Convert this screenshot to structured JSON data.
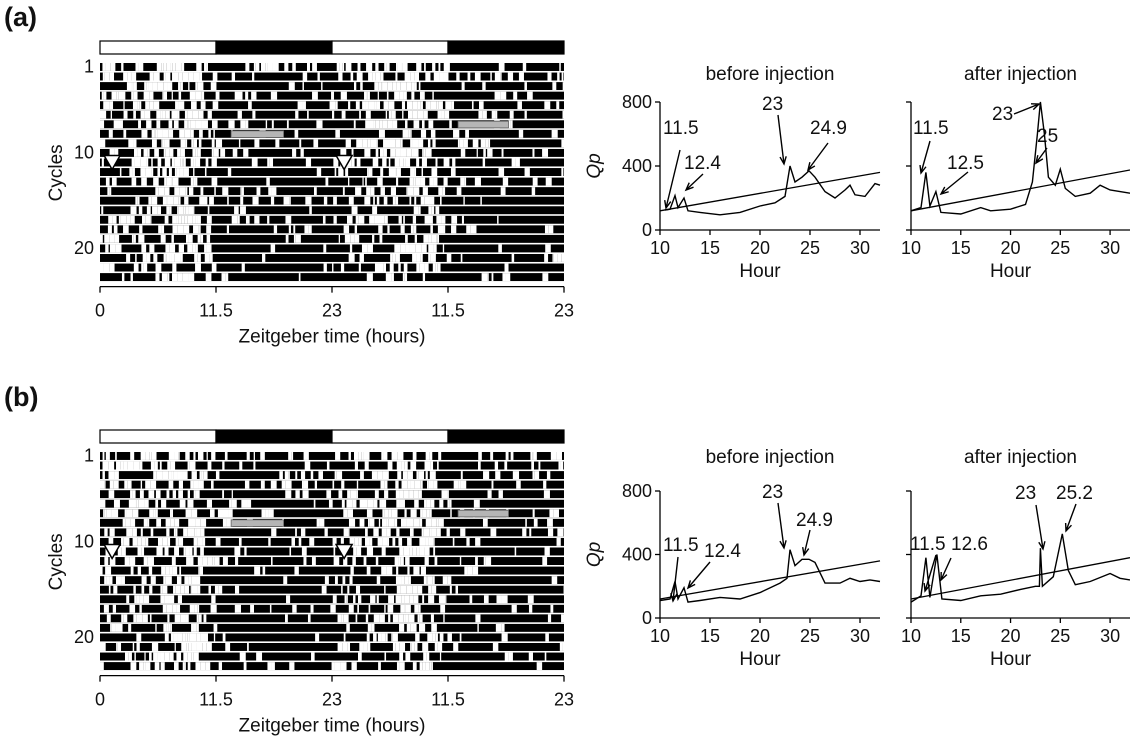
{
  "figure": {
    "panels": [
      {
        "label": "(a)",
        "actogram": {
          "cycle_tick_labels": [
            "1",
            "10",
            "20"
          ],
          "cycle_tick_values": [
            1,
            10,
            20
          ],
          "cycles": 23,
          "y_axis_label": "Cycles",
          "x_tick_labels": [
            "0",
            "11.5",
            "23",
            "11.5",
            "23"
          ],
          "x_axis_label": "Zeitgeber time (hours)",
          "light_dark_bar": [
            "light",
            "dark",
            "light",
            "dark"
          ],
          "injection_marker_cycle": 11,
          "gray_bars": [
            {
              "cycle": 8,
              "start_h": 13.0,
              "end_h": 18.2
            },
            {
              "cycle": 7,
              "start_h": 35.5,
              "end_h": 40.5
            }
          ]
        }
      },
      {
        "label": "(b)",
        "actogram": {
          "cycle_tick_labels": [
            "1",
            "10",
            "20"
          ],
          "cycle_tick_values": [
            1,
            10,
            20
          ],
          "cycles": 23,
          "y_axis_label": "Cycles",
          "x_tick_labels": [
            "0",
            "11.5",
            "23",
            "11.5",
            "23"
          ],
          "x_axis_label": "Zeitgeber time (hours)",
          "light_dark_bar": [
            "light",
            "dark",
            "light",
            "dark"
          ],
          "injection_marker_cycle": 11,
          "gray_bars": [
            {
              "cycle": 8,
              "start_h": 13.0,
              "end_h": 18.2
            },
            {
              "cycle": 7,
              "start_h": 35.5,
              "end_h": 40.5
            }
          ]
        }
      }
    ]
  },
  "chart_data": [
    {
      "type": "line",
      "panel": "(a)",
      "title": "before injection",
      "xlabel": "Hour",
      "ylabel": "Qp",
      "xlim": [
        10,
        32
      ],
      "ylim": [
        0,
        800
      ],
      "x_ticks": [
        "10",
        "15",
        "20",
        "25",
        "30"
      ],
      "y_ticks": [
        "0",
        "400",
        "800"
      ],
      "series": [
        {
          "values": [
            [
              10.5,
              125
            ],
            [
              11,
              130
            ],
            [
              11.5,
              215
            ],
            [
              11.8,
              140
            ],
            [
              12.4,
              200
            ],
            [
              12.8,
              120
            ],
            [
              14,
              110
            ],
            [
              16,
              95
            ],
            [
              18,
              110
            ],
            [
              20,
              150
            ],
            [
              21.5,
              170
            ],
            [
              22.5,
              210
            ],
            [
              23,
              400
            ],
            [
              23.5,
              300
            ],
            [
              24.2,
              330
            ],
            [
              24.9,
              370
            ],
            [
              25.5,
              330
            ],
            [
              26.5,
              240
            ],
            [
              27.5,
              200
            ],
            [
              28.5,
              250
            ],
            [
              29,
              280
            ],
            [
              29.5,
              220
            ],
            [
              30.5,
              210
            ],
            [
              31.5,
              290
            ],
            [
              32,
              280
            ]
          ]
        },
        {
          "values": [
            [
              10,
              120
            ],
            [
              32,
              360
            ]
          ]
        }
      ],
      "annotations": [
        "11.5",
        "12.4",
        "23",
        "24.9"
      ]
    },
    {
      "type": "line",
      "panel": "(a)",
      "title": "after injection",
      "xlabel": "Hour",
      "ylabel": "",
      "xlim": [
        10,
        32
      ],
      "ylim": [
        0,
        800
      ],
      "x_ticks": [
        "10",
        "15",
        "20",
        "25",
        "30"
      ],
      "y_ticks": [],
      "series": [
        {
          "values": [
            [
              10,
              120
            ],
            [
              11,
              140
            ],
            [
              11.5,
              360
            ],
            [
              11.9,
              150
            ],
            [
              12.5,
              240
            ],
            [
              13,
              110
            ],
            [
              15,
              100
            ],
            [
              17,
              140
            ],
            [
              18,
              120
            ],
            [
              20,
              130
            ],
            [
              21.5,
              160
            ],
            [
              22.2,
              300
            ],
            [
              22.7,
              600
            ],
            [
              23,
              800
            ],
            [
              23.4,
              600
            ],
            [
              23.8,
              330
            ],
            [
              24.5,
              280
            ],
            [
              25,
              380
            ],
            [
              25.5,
              260
            ],
            [
              26.5,
              210
            ],
            [
              28,
              230
            ],
            [
              29,
              280
            ],
            [
              30,
              250
            ],
            [
              31,
              240
            ],
            [
              32,
              230
            ]
          ]
        },
        {
          "values": [
            [
              10,
              120
            ],
            [
              32,
              375
            ]
          ]
        }
      ],
      "annotations": [
        "11.5",
        "12.5",
        "23",
        "25"
      ]
    },
    {
      "type": "line",
      "panel": "(b)",
      "title": "before injection",
      "xlabel": "Hour",
      "ylabel": "Qp",
      "xlim": [
        10,
        32
      ],
      "ylim": [
        0,
        800
      ],
      "x_ticks": [
        "10",
        "15",
        "20",
        "25",
        "30"
      ],
      "y_ticks": [
        "0",
        "400",
        "800"
      ],
      "series": [
        {
          "values": [
            [
              10,
              110
            ],
            [
              11,
              120
            ],
            [
              11.5,
              230
            ],
            [
              11.8,
              120
            ],
            [
              12.4,
              190
            ],
            [
              12.8,
              100
            ],
            [
              14,
              110
            ],
            [
              16,
              130
            ],
            [
              18,
              120
            ],
            [
              20,
              160
            ],
            [
              22,
              220
            ],
            [
              22.7,
              250
            ],
            [
              23,
              430
            ],
            [
              23.5,
              330
            ],
            [
              24.2,
              370
            ],
            [
              24.9,
              370
            ],
            [
              25.5,
              350
            ],
            [
              26.5,
              220
            ],
            [
              28,
              220
            ],
            [
              29,
              250
            ],
            [
              30,
              230
            ],
            [
              31,
              240
            ],
            [
              32,
              230
            ]
          ]
        },
        {
          "values": [
            [
              10,
              120
            ],
            [
              32,
              360
            ]
          ]
        }
      ],
      "annotations": [
        "11.5",
        "12.4",
        "23",
        "24.9"
      ]
    },
    {
      "type": "line",
      "panel": "(b)",
      "title": "after injection",
      "xlabel": "Hour",
      "ylabel": "",
      "xlim": [
        10,
        32
      ],
      "ylim": [
        0,
        800
      ],
      "x_ticks": [
        "10",
        "15",
        "20",
        "25",
        "30"
      ],
      "y_ticks": [],
      "series": [
        {
          "values": [
            [
              10,
              100
            ],
            [
              11,
              140
            ],
            [
              11.5,
              380
            ],
            [
              11.9,
              130
            ],
            [
              12.6,
              400
            ],
            [
              13.1,
              120
            ],
            [
              15,
              110
            ],
            [
              17,
              140
            ],
            [
              19,
              150
            ],
            [
              21,
              180
            ],
            [
              22.5,
              200
            ],
            [
              22.9,
              200
            ],
            [
              23,
              440
            ],
            [
              23.2,
              200
            ],
            [
              24.3,
              260
            ],
            [
              25.2,
              530
            ],
            [
              25.8,
              300
            ],
            [
              26.5,
              210
            ],
            [
              28,
              230
            ],
            [
              30,
              280
            ],
            [
              31,
              250
            ],
            [
              32,
              240
            ]
          ]
        },
        {
          "values": [
            [
              10,
              120
            ],
            [
              32,
              380
            ]
          ]
        }
      ],
      "annotations": [
        "11.5",
        "12.6",
        "23",
        "25.2"
      ]
    }
  ]
}
